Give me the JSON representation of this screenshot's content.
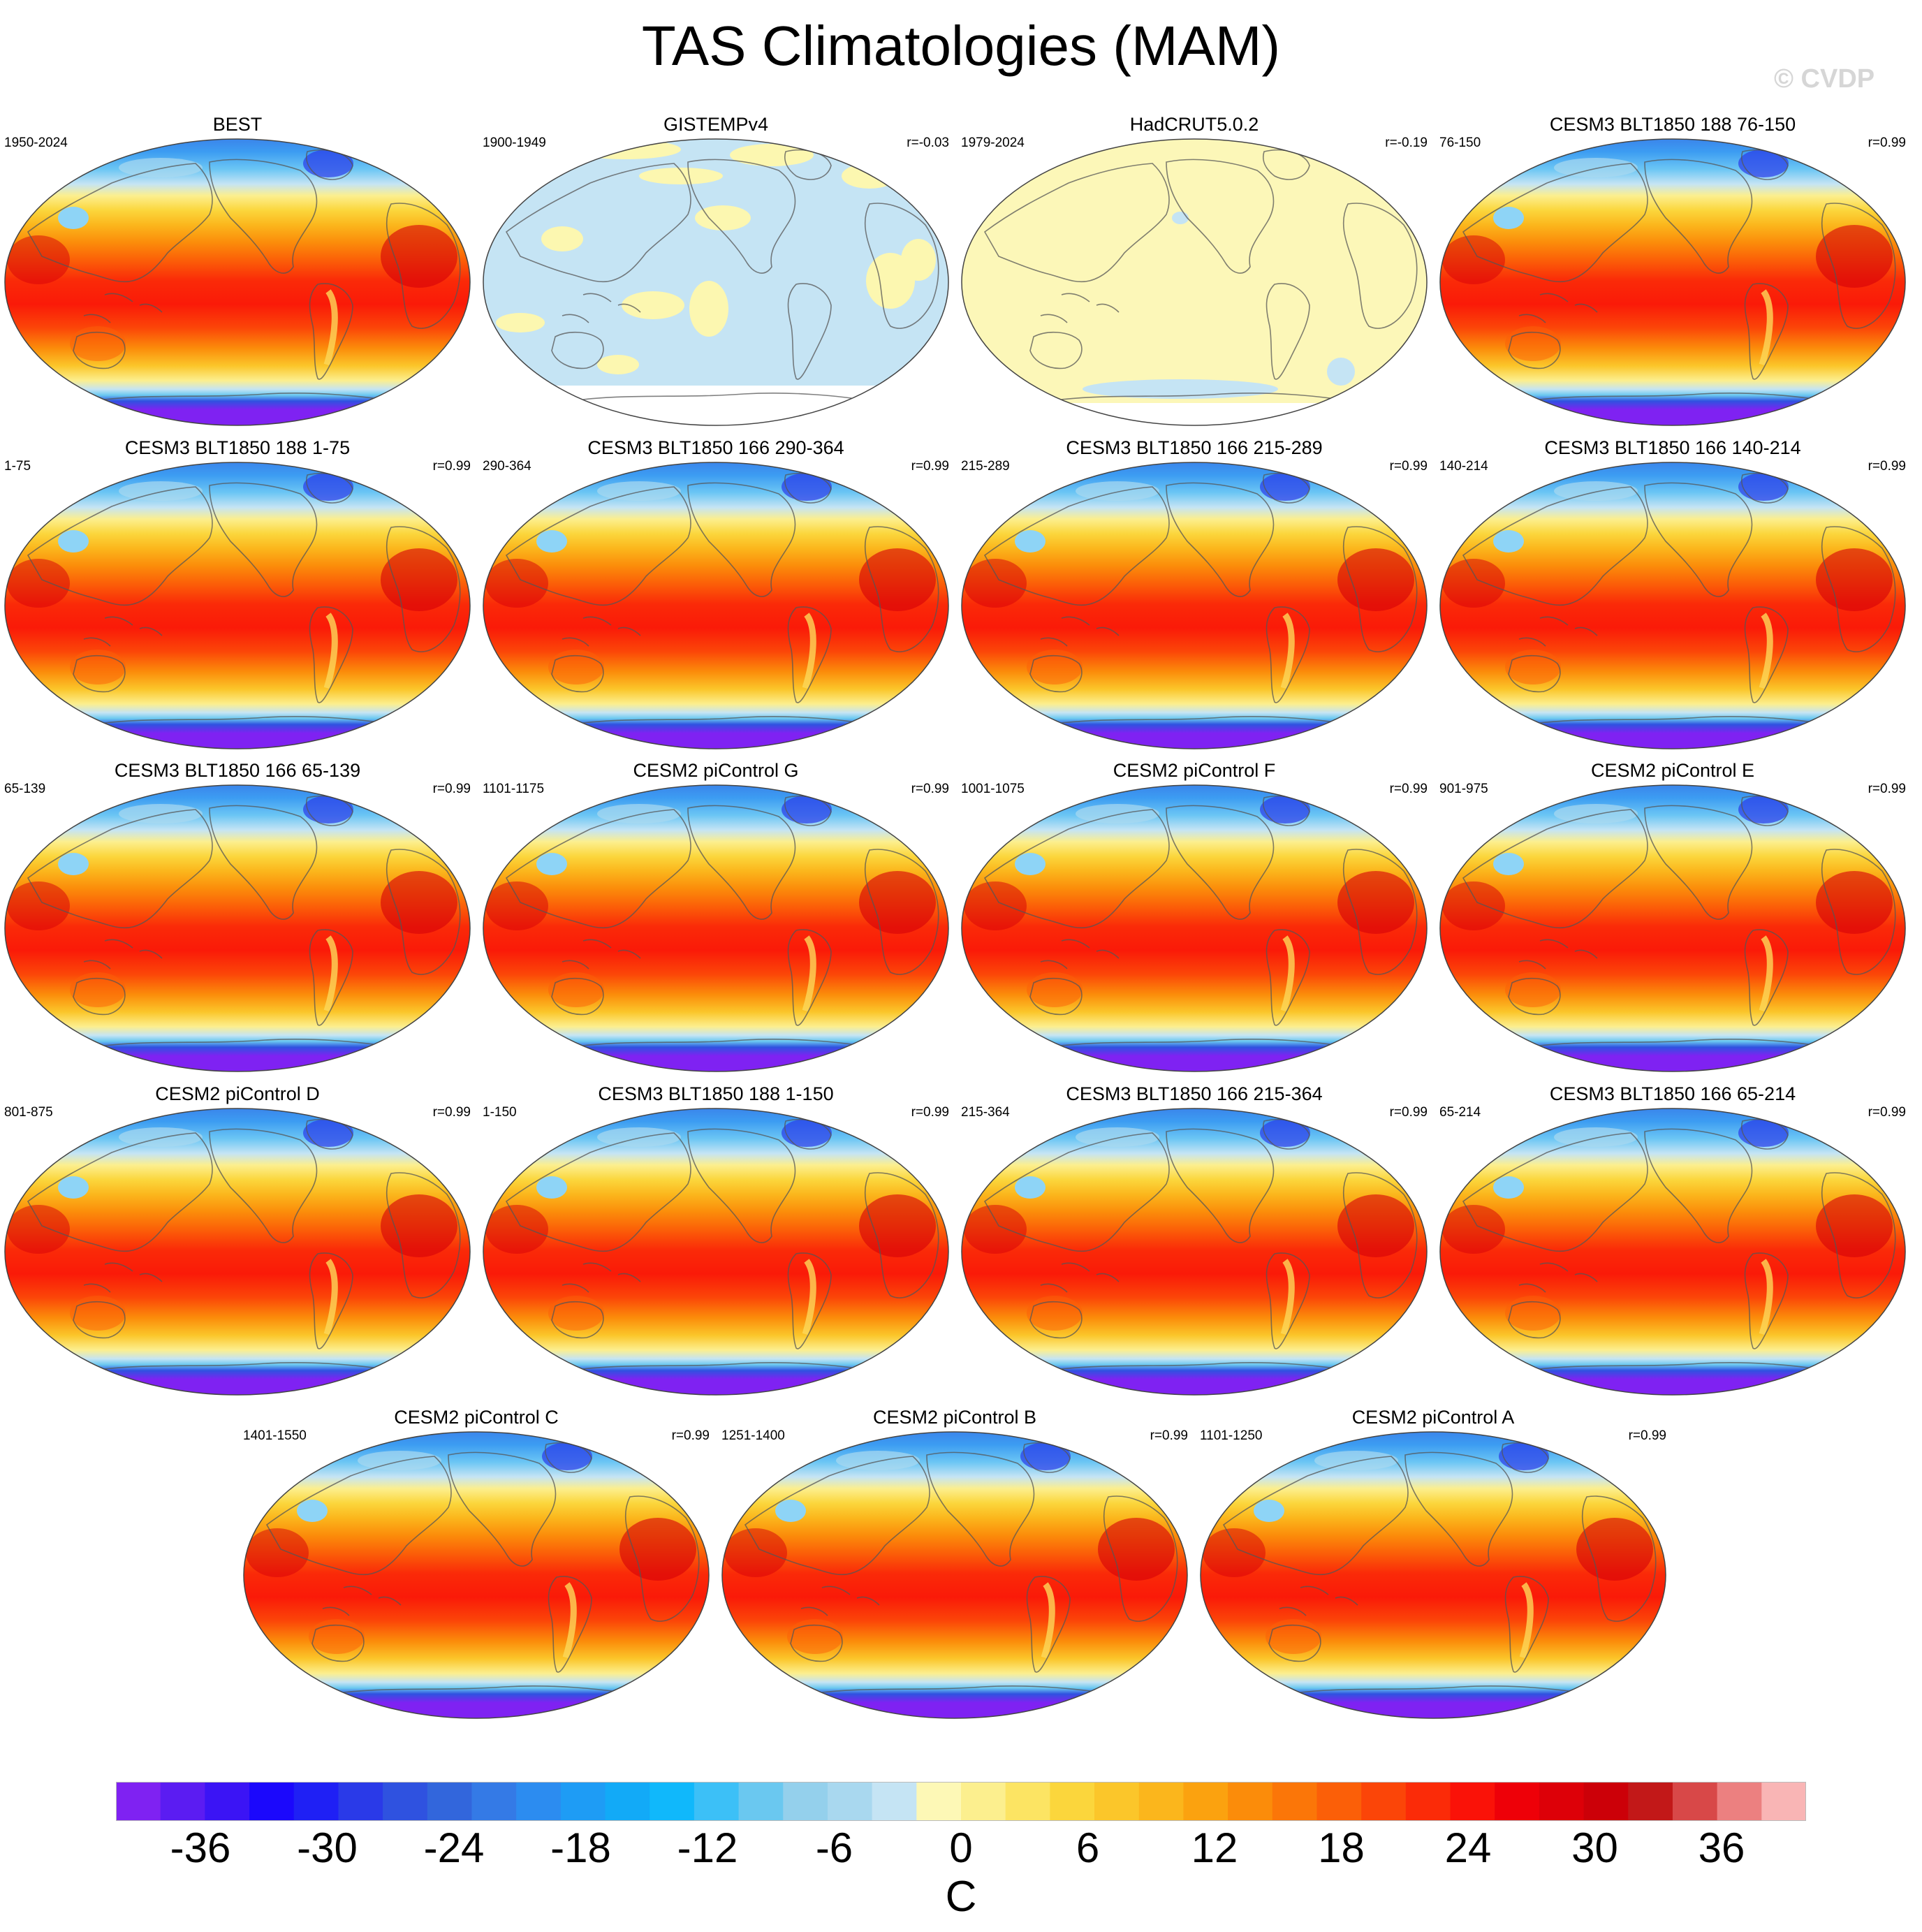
{
  "title": "TAS Climatologies (MAM)",
  "watermark": "© CVDP",
  "chart_data": {
    "type": "map-panel-grid",
    "variable": "TAS",
    "season": "MAM",
    "panels": [
      {
        "name": "BEST",
        "years": "1950-2024",
        "r": "",
        "style": "full"
      },
      {
        "name": "GISTEMPv4",
        "years": "1900-1949",
        "r": "r=-0.03",
        "style": "gistemp"
      },
      {
        "name": "HadCRUT5.0.2",
        "years": "1979-2024",
        "r": "r=-0.19",
        "style": "hadcrut"
      },
      {
        "name": "CESM3 BLT1850 188 76-150",
        "years": "76-150",
        "r": "r=0.99",
        "style": "full"
      },
      {
        "name": "CESM3 BLT1850 188 1-75",
        "years": "1-75",
        "r": "r=0.99",
        "style": "full"
      },
      {
        "name": "CESM3 BLT1850 166 290-364",
        "years": "290-364",
        "r": "r=0.99",
        "style": "full"
      },
      {
        "name": "CESM3 BLT1850 166 215-289",
        "years": "215-289",
        "r": "r=0.99",
        "style": "full"
      },
      {
        "name": "CESM3 BLT1850 166 140-214",
        "years": "140-214",
        "r": "r=0.99",
        "style": "full"
      },
      {
        "name": "CESM3 BLT1850 166 65-139",
        "years": "65-139",
        "r": "r=0.99",
        "style": "full"
      },
      {
        "name": "CESM2 piControl G",
        "years": "1101-1175",
        "r": "r=0.99",
        "style": "full"
      },
      {
        "name": "CESM2 piControl F",
        "years": "1001-1075",
        "r": "r=0.99",
        "style": "full"
      },
      {
        "name": "CESM2 piControl E",
        "years": "901-975",
        "r": "r=0.99",
        "style": "full"
      },
      {
        "name": "CESM2 piControl D",
        "years": "801-875",
        "r": "r=0.99",
        "style": "full"
      },
      {
        "name": "CESM3 BLT1850 188 1-150",
        "years": "1-150",
        "r": "r=0.99",
        "style": "full"
      },
      {
        "name": "CESM3 BLT1850 166 215-364",
        "years": "215-364",
        "r": "r=0.99",
        "style": "full"
      },
      {
        "name": "CESM3 BLT1850 166 65-214",
        "years": "65-214",
        "r": "r=0.99",
        "style": "full"
      },
      {
        "name": "CESM2 piControl C",
        "years": "1401-1550",
        "r": "r=0.99",
        "style": "full"
      },
      {
        "name": "CESM2 piControl B",
        "years": "1251-1400",
        "r": "r=0.99",
        "style": "full"
      },
      {
        "name": "CESM2 piControl A",
        "years": "1101-1250",
        "r": "r=0.99",
        "style": "full"
      }
    ],
    "colorbar": {
      "units": "C",
      "levels": [
        -40,
        40
      ],
      "tick_values": [
        -36,
        -30,
        -24,
        -18,
        -12,
        -6,
        0,
        6,
        12,
        18,
        24,
        30,
        36
      ],
      "tick_labels": [
        "-36",
        "-30",
        "-24",
        "-18",
        "-12",
        "-6",
        "0",
        "6",
        "12",
        "18",
        "24",
        "30",
        "36"
      ],
      "colors": [
        "#7f22f2",
        "#5b1cf2",
        "#3b14f5",
        "#1b08fc",
        "#1f20f5",
        "#2a3ae8",
        "#2f52e0",
        "#3266dc",
        "#347ae6",
        "#2c8cf0",
        "#1e9cf5",
        "#12aaf7",
        "#10b8fb",
        "#3cc0f7",
        "#6ac8f0",
        "#94d0ec",
        "#a9d8ef",
        "#c5e4f4",
        "#fdf8b6",
        "#fcef8e",
        "#fce463",
        "#fbd63c",
        "#fbc62a",
        "#fbb61c",
        "#fba20f",
        "#fb8c0a",
        "#fb7608",
        "#fb5f08",
        "#fb4508",
        "#fb2b08",
        "#fa1208",
        "#ee0008",
        "#dd0008",
        "#cc0008",
        "#c21818",
        "#d84848",
        "#ec8080",
        "#f9b5b5"
      ]
    }
  }
}
